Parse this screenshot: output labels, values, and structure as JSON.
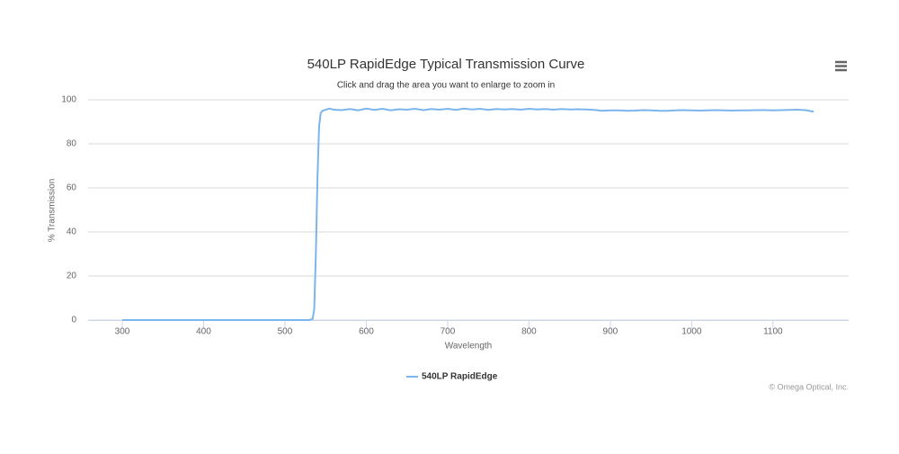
{
  "chart_data": {
    "type": "line",
    "title": "540LP RapidEdge Typical Transmission Curve",
    "subtitle": "Click and drag the area you want to enlarge to zoom in",
    "x_label": "Wavelength",
    "y_label": "% Transmission",
    "credits": "© Omega Optical, Inc.",
    "xlim": [
      258,
      1193
    ],
    "xticks": [
      300,
      400,
      500,
      600,
      700,
      800,
      900,
      1000,
      1100
    ],
    "ylim": [
      0,
      100
    ],
    "yticks": [
      0,
      20,
      40,
      60,
      80,
      100
    ],
    "grid": true,
    "legend": "bottom",
    "x": [
      300,
      320,
      340,
      360,
      380,
      400,
      420,
      440,
      460,
      480,
      500,
      520,
      530,
      534,
      536,
      538,
      540,
      542,
      544,
      546,
      550,
      555,
      560,
      570,
      580,
      590,
      600,
      610,
      620,
      630,
      640,
      650,
      660,
      670,
      680,
      690,
      700,
      710,
      720,
      730,
      740,
      750,
      760,
      770,
      780,
      790,
      800,
      810,
      820,
      830,
      840,
      850,
      860,
      870,
      880,
      890,
      900,
      910,
      920,
      930,
      940,
      950,
      960,
      970,
      980,
      990,
      1000,
      1010,
      1020,
      1030,
      1040,
      1050,
      1060,
      1070,
      1080,
      1090,
      1100,
      1110,
      1120,
      1130,
      1140,
      1150
    ],
    "series": [
      {
        "name": "540LP RapidEdge",
        "color": "#7cb5ec",
        "values": [
          0,
          0,
          0,
          0,
          0,
          0,
          0,
          0,
          0,
          0,
          0,
          0,
          0,
          0.5,
          5,
          30,
          65,
          88,
          94,
          95,
          95.5,
          96,
          95.5,
          95.3,
          95.8,
          95.2,
          96.0,
          95.4,
          95.9,
          95.2,
          95.7,
          95.5,
          95.9,
          95.3,
          95.8,
          95.5,
          95.9,
          95.4,
          96.0,
          95.6,
          95.9,
          95.4,
          95.8,
          95.6,
          95.8,
          95.5,
          95.9,
          95.6,
          95.8,
          95.5,
          95.8,
          95.6,
          95.7,
          95.6,
          95.4,
          95.0,
          95.2,
          95.2,
          95.0,
          95.1,
          95.3,
          95.2,
          95.0,
          95.0,
          95.2,
          95.3,
          95.2,
          95.1,
          95.2,
          95.3,
          95.2,
          95.1,
          95.2,
          95.2,
          95.3,
          95.3,
          95.2,
          95.3,
          95.4,
          95.5,
          95.3,
          94.6
        ]
      }
    ]
  }
}
